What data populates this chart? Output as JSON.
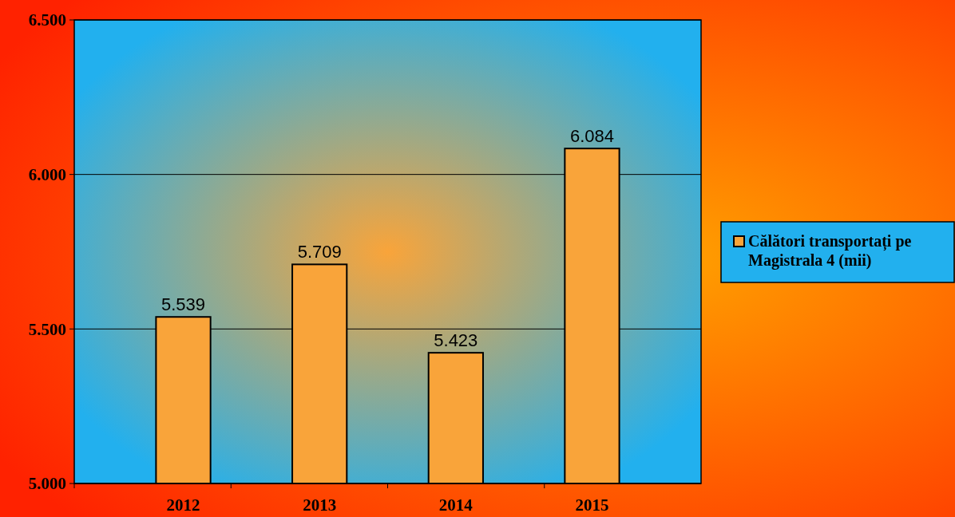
{
  "chart_data": {
    "type": "bar",
    "categories": [
      "2012",
      "2013",
      "2014",
      "2015"
    ],
    "series": [
      {
        "name": "Călători transportați pe Magistrala 4 (mii)",
        "color": "#f9a43a",
        "values": [
          5539,
          5709,
          5423,
          6084
        ],
        "value_labels": [
          "5.539",
          "5.709",
          "5.423",
          "6.084"
        ]
      }
    ],
    "ylim": [
      5000,
      6500
    ],
    "yticks": [
      {
        "value": 5000,
        "label": "5.000"
      },
      {
        "value": 5500,
        "label": "5.500"
      },
      {
        "value": 6000,
        "label": "6.000"
      },
      {
        "value": 6500,
        "label": "6.500"
      }
    ],
    "grid": "y",
    "legend": "right"
  }
}
